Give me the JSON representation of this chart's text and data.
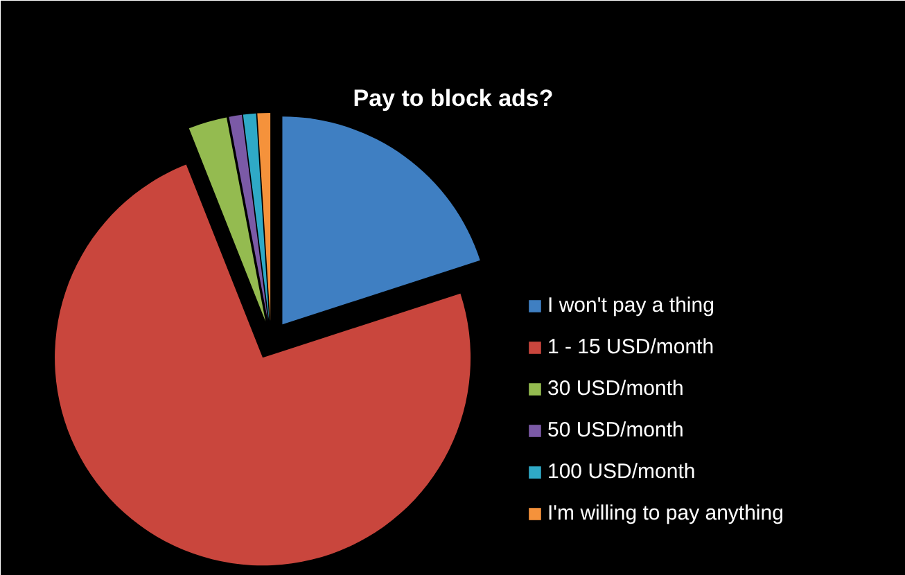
{
  "chart_data": {
    "type": "pie",
    "title": "Pay to block ads?",
    "categories": [
      "I won't pay a thing",
      "1 - 15 USD/month",
      "30 USD/month",
      "50 USD/month",
      "100 USD/month",
      "I'm willing to pay anything"
    ],
    "values": [
      20,
      74,
      3,
      1,
      1,
      1
    ],
    "colors": [
      "#3f7fc2",
      "#c9463d",
      "#94bb50",
      "#7b5aa6",
      "#2fa9c6",
      "#f5923b"
    ],
    "legend": "right"
  }
}
